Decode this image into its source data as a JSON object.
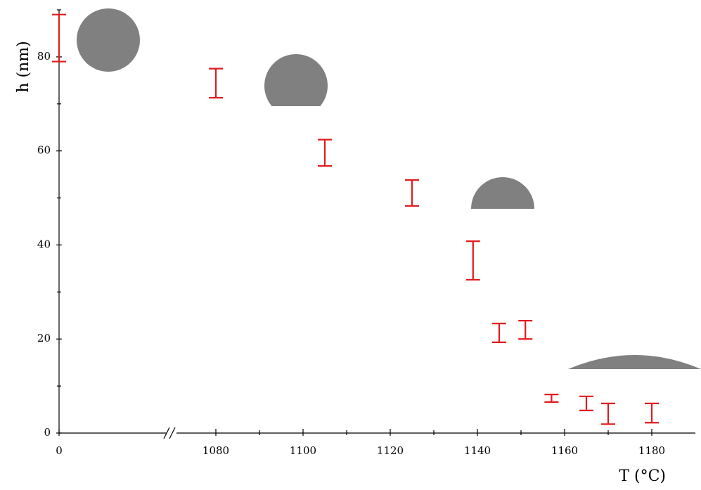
{
  "chart_data": {
    "type": "errorbar",
    "x_label": "T (°C)",
    "y_label": "h (nm)",
    "x": [
      0,
      1080,
      1105,
      1125,
      1139,
      1145,
      1151,
      1157,
      1165,
      1170,
      1180
    ],
    "series": [
      {
        "color": "#e31a1c",
        "lower": [
          79.0,
          71.3,
          56.8,
          48.3,
          32.6,
          19.3,
          20.0,
          6.6,
          4.8,
          1.9,
          2.2
        ],
        "upper": [
          89.0,
          77.5,
          62.4,
          53.8,
          40.8,
          23.3,
          23.9,
          8.2,
          7.8,
          6.3,
          6.3
        ]
      }
    ],
    "xlim": [
      0,
      1190
    ],
    "xbreak": [
      26,
      1070
    ],
    "xticks": [
      0,
      1080,
      1100,
      1120,
      1140,
      1160,
      1180
    ],
    "xminorticks": [
      1090,
      1110,
      1130,
      1150,
      1170
    ],
    "ylim": [
      0,
      90
    ],
    "yticks": [
      0,
      20,
      40,
      60,
      80
    ],
    "yminorticks": [
      10,
      30,
      50,
      70,
      90
    ]
  }
}
